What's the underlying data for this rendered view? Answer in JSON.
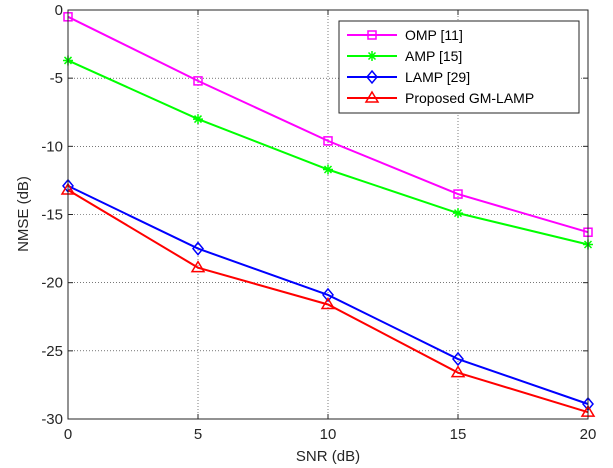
{
  "chart_data": {
    "type": "line",
    "title": "",
    "xlabel": "SNR (dB)",
    "ylabel": "NMSE (dB)",
    "xlim": [
      0,
      20
    ],
    "ylim": [
      -30,
      0
    ],
    "xticks": [
      0,
      5,
      10,
      15,
      20
    ],
    "yticks": [
      0,
      -5,
      -10,
      -15,
      -20,
      -25,
      -30
    ],
    "grid": true,
    "legend_position": "top-right",
    "x": [
      0,
      5,
      10,
      15,
      20
    ],
    "series": [
      {
        "name": "OMP [11]",
        "values": [
          -0.5,
          -5.2,
          -9.6,
          -13.5,
          -16.3
        ],
        "color": "#ff00ff",
        "marker": "square"
      },
      {
        "name": "AMP [15]",
        "values": [
          -3.7,
          -8.0,
          -11.7,
          -14.9,
          -17.2
        ],
        "color": "#00ff00",
        "marker": "asterisk"
      },
      {
        "name": "LAMP [29]",
        "values": [
          -12.9,
          -17.5,
          -20.9,
          -25.6,
          -28.9
        ],
        "color": "#0000ff",
        "marker": "diamond"
      },
      {
        "name": "Proposed GM-LAMP",
        "values": [
          -13.2,
          -18.9,
          -21.6,
          -26.6,
          -29.5
        ],
        "color": "#ff0000",
        "marker": "triangle"
      }
    ]
  }
}
